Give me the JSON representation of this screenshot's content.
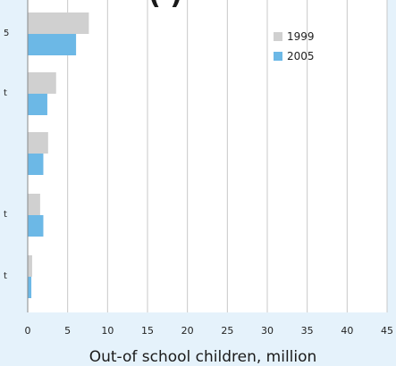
{
  "chart_data": {
    "type": "bar",
    "orientation": "horizontal",
    "title": "(   )",
    "categories": [
      "5",
      "t",
      "",
      "t",
      "t"
    ],
    "series": [
      {
        "name": "1999",
        "color": "#d0d0d0",
        "values": [
          7.6,
          3.5,
          2.5,
          1.5,
          0.5
        ]
      },
      {
        "name": "2005",
        "color": "#6cb8e6",
        "values": [
          6.0,
          2.4,
          1.9,
          1.9,
          0.4
        ]
      }
    ],
    "xlabel": "Out-of school children, million",
    "xlim": [
      0,
      45
    ],
    "xticks": [
      0,
      5,
      10,
      15,
      20,
      25,
      30,
      35,
      40,
      45
    ],
    "grid": true,
    "legend_position": "top-right"
  }
}
